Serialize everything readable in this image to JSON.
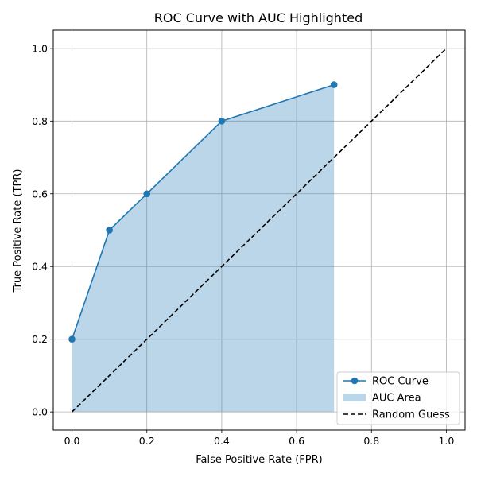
{
  "chart_data": {
    "type": "line",
    "title": "ROC Curve with AUC Highlighted",
    "xlabel": "False Positive Rate (FPR)",
    "ylabel": "True Positive Rate (TPR)",
    "xlim": [
      -0.05,
      1.05
    ],
    "ylim": [
      -0.05,
      1.05
    ],
    "xticks": [
      "0.0",
      "0.2",
      "0.4",
      "0.6",
      "0.8",
      "1.0"
    ],
    "yticks": [
      "0.0",
      "0.2",
      "0.4",
      "0.6",
      "0.8",
      "1.0"
    ],
    "grid": true,
    "legend_position": "lower right",
    "series": [
      {
        "name": "ROC Curve",
        "kind": "line-markers",
        "color": "#1f77b4",
        "x": [
          0.0,
          0.1,
          0.2,
          0.4,
          0.7
        ],
        "y": [
          0.2,
          0.5,
          0.6,
          0.8,
          0.9
        ]
      },
      {
        "name": "AUC Area",
        "kind": "area",
        "color": "#1f77b4",
        "opacity": 0.3,
        "x": [
          0.0,
          0.1,
          0.2,
          0.4,
          0.7
        ],
        "y": [
          0.2,
          0.5,
          0.6,
          0.8,
          0.9
        ]
      },
      {
        "name": "Random Guess",
        "kind": "dashed-line",
        "color": "#000000",
        "x": [
          0.0,
          1.0
        ],
        "y": [
          0.0,
          1.0
        ]
      }
    ]
  }
}
